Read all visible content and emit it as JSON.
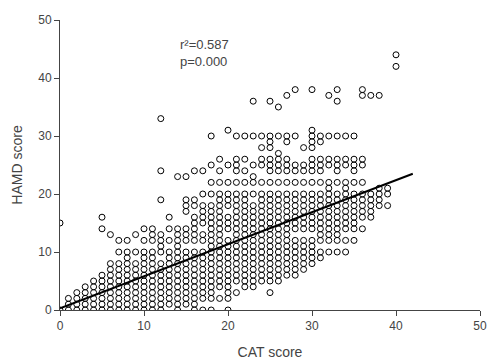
{
  "chart_data": {
    "type": "scatter",
    "xlabel": "CAT score",
    "ylabel": "HAMD score",
    "xlim": [
      0,
      50
    ],
    "ylim": [
      0,
      50
    ],
    "xticks": [
      0,
      10,
      20,
      30,
      40,
      50
    ],
    "yticks": [
      0,
      10,
      20,
      30,
      40,
      50
    ],
    "grid": false,
    "annotation": "r²=0.587\np=0.000",
    "series": [
      {
        "type": "scatter",
        "marker": "open circle",
        "color": "black",
        "x": [
          0,
          0,
          1,
          1,
          1,
          2,
          2,
          2,
          2,
          3,
          3,
          3,
          3,
          3,
          4,
          4,
          4,
          4,
          4,
          4,
          5,
          5,
          5,
          5,
          5,
          5,
          5,
          5,
          5,
          6,
          6,
          6,
          6,
          6,
          6,
          6,
          6,
          6,
          6,
          7,
          7,
          7,
          7,
          7,
          7,
          7,
          7,
          7,
          7,
          7,
          8,
          8,
          8,
          8,
          8,
          8,
          8,
          8,
          8,
          8,
          8,
          8,
          9,
          9,
          9,
          9,
          9,
          9,
          9,
          9,
          9,
          9,
          9,
          10,
          10,
          10,
          10,
          10,
          10,
          10,
          10,
          10,
          10,
          10,
          10,
          10,
          11,
          11,
          11,
          11,
          11,
          11,
          11,
          11,
          11,
          11,
          11,
          11,
          11,
          11,
          12,
          12,
          12,
          12,
          12,
          12,
          12,
          12,
          12,
          12,
          12,
          12,
          12,
          12,
          12,
          12,
          13,
          13,
          13,
          13,
          13,
          13,
          13,
          13,
          13,
          13,
          13,
          13,
          13,
          14,
          14,
          14,
          14,
          14,
          14,
          14,
          14,
          14,
          14,
          14,
          14,
          14,
          14,
          14,
          14,
          15,
          15,
          15,
          15,
          15,
          15,
          15,
          15,
          15,
          15,
          15,
          15,
          15,
          15,
          15,
          15,
          15,
          16,
          16,
          16,
          16,
          16,
          16,
          16,
          16,
          16,
          16,
          16,
          16,
          16,
          16,
          16,
          16,
          16,
          16,
          16,
          17,
          17,
          17,
          17,
          17,
          17,
          17,
          17,
          17,
          17,
          17,
          17,
          17,
          17,
          17,
          17,
          17,
          17,
          18,
          18,
          18,
          18,
          18,
          18,
          18,
          18,
          18,
          18,
          18,
          18,
          18,
          18,
          18,
          18,
          18,
          18,
          18,
          18,
          18,
          18,
          19,
          19,
          19,
          19,
          19,
          19,
          19,
          19,
          19,
          19,
          19,
          19,
          19,
          19,
          19,
          19,
          19,
          19,
          19,
          19,
          19,
          20,
          20,
          20,
          20,
          20,
          20,
          20,
          20,
          20,
          20,
          20,
          20,
          20,
          20,
          20,
          20,
          20,
          20,
          20,
          20,
          20,
          21,
          21,
          21,
          21,
          21,
          21,
          21,
          21,
          21,
          21,
          21,
          21,
          21,
          21,
          21,
          21,
          21,
          21,
          21,
          21,
          21,
          21,
          22,
          22,
          22,
          22,
          22,
          22,
          22,
          22,
          22,
          22,
          22,
          22,
          22,
          22,
          22,
          22,
          22,
          22,
          22,
          22,
          22,
          23,
          23,
          23,
          23,
          23,
          23,
          23,
          23,
          23,
          23,
          23,
          23,
          23,
          23,
          23,
          23,
          23,
          23,
          23,
          23,
          23,
          24,
          24,
          24,
          24,
          24,
          24,
          24,
          24,
          24,
          24,
          24,
          24,
          24,
          24,
          24,
          24,
          24,
          24,
          24,
          24,
          24,
          25,
          25,
          25,
          25,
          25,
          25,
          25,
          25,
          25,
          25,
          25,
          25,
          25,
          25,
          25,
          25,
          25,
          25,
          25,
          25,
          25,
          25,
          25,
          25,
          25,
          26,
          26,
          26,
          26,
          26,
          26,
          26,
          26,
          26,
          26,
          26,
          26,
          26,
          26,
          26,
          26,
          26,
          26,
          26,
          26,
          26,
          26,
          26,
          27,
          27,
          27,
          27,
          27,
          27,
          27,
          27,
          27,
          27,
          27,
          27,
          27,
          27,
          27,
          27,
          27,
          27,
          27,
          27,
          27,
          27,
          28,
          28,
          28,
          28,
          28,
          28,
          28,
          28,
          28,
          28,
          28,
          28,
          28,
          28,
          28,
          28,
          28,
          28,
          28,
          29,
          29,
          29,
          29,
          29,
          29,
          29,
          29,
          29,
          29,
          29,
          29,
          29,
          29,
          29,
          29,
          29,
          30,
          30,
          30,
          30,
          30,
          30,
          30,
          30,
          30,
          30,
          30,
          30,
          30,
          30,
          30,
          30,
          30,
          30,
          30,
          30,
          30,
          31,
          31,
          31,
          31,
          31,
          31,
          31,
          31,
          31,
          31,
          31,
          31,
          31,
          31,
          31,
          31,
          31,
          32,
          32,
          32,
          32,
          32,
          32,
          32,
          32,
          32,
          32,
          32,
          32,
          32,
          32,
          32,
          32,
          33,
          33,
          33,
          33,
          33,
          33,
          33,
          33,
          33,
          33,
          33,
          33,
          33,
          33,
          33,
          33,
          33,
          34,
          34,
          34,
          34,
          34,
          34,
          34,
          34,
          34,
          34,
          34,
          34,
          34,
          34,
          35,
          35,
          35,
          35,
          35,
          35,
          35,
          35,
          35,
          35,
          35,
          35,
          35,
          36,
          36,
          36,
          36,
          36,
          36,
          36,
          36,
          36,
          36,
          36,
          37,
          37,
          37,
          37,
          37,
          37,
          38,
          38,
          38,
          38,
          38,
          39,
          39,
          39,
          40,
          40
        ],
        "values": [
          15,
          0,
          0,
          1,
          2,
          0,
          1,
          2,
          3,
          0,
          1,
          2,
          3,
          4,
          0,
          1,
          2,
          3,
          4,
          5,
          0,
          1,
          2,
          3,
          4,
          5,
          6,
          14,
          16,
          0,
          1,
          2,
          3,
          4,
          5,
          6,
          7,
          8,
          13,
          0,
          1,
          2,
          3,
          4,
          5,
          6,
          7,
          8,
          10,
          12,
          0,
          1,
          2,
          3,
          4,
          5,
          6,
          7,
          8,
          9,
          10,
          12,
          0,
          1,
          2,
          3,
          4,
          5,
          6,
          7,
          8,
          10,
          13,
          0,
          1,
          2,
          3,
          4,
          5,
          6,
          7,
          8,
          9,
          10,
          12,
          14,
          0,
          1,
          2,
          3,
          4,
          5,
          6,
          7,
          8,
          9,
          10,
          12,
          13,
          14,
          0,
          1,
          2,
          3,
          4,
          5,
          6,
          7,
          8,
          10,
          11,
          12,
          13,
          19,
          24,
          33,
          1,
          2,
          3,
          4,
          5,
          6,
          7,
          8,
          9,
          10,
          12,
          14,
          16,
          0,
          1,
          2,
          3,
          4,
          5,
          6,
          7,
          8,
          9,
          10,
          11,
          12,
          13,
          14,
          23,
          1,
          2,
          3,
          4,
          5,
          6,
          7,
          8,
          9,
          10,
          12,
          13,
          14,
          17,
          18,
          19,
          23,
          0,
          1,
          2,
          3,
          4,
          5,
          6,
          7,
          8,
          9,
          10,
          12,
          13,
          14,
          15,
          16,
          18,
          19,
          24,
          0,
          2,
          3,
          4,
          5,
          6,
          7,
          8,
          9,
          10,
          12,
          13,
          15,
          16,
          17,
          18,
          20,
          24,
          0,
          2,
          3,
          4,
          5,
          6,
          7,
          8,
          9,
          10,
          11,
          12,
          13,
          14,
          15,
          16,
          17,
          18,
          20,
          22,
          25,
          30,
          2,
          4,
          5,
          6,
          7,
          8,
          9,
          10,
          11,
          12,
          13,
          14,
          15,
          16,
          17,
          18,
          19,
          20,
          22,
          24,
          26,
          0,
          2,
          3,
          4,
          5,
          6,
          7,
          8,
          9,
          10,
          11,
          12,
          14,
          15,
          16,
          18,
          19,
          20,
          22,
          25,
          31,
          3,
          5,
          6,
          7,
          8,
          9,
          10,
          11,
          12,
          13,
          14,
          15,
          16,
          17,
          18,
          19,
          20,
          22,
          24,
          25,
          26,
          30,
          4,
          5,
          6,
          7,
          8,
          9,
          10,
          11,
          12,
          13,
          14,
          15,
          16,
          17,
          18,
          19,
          20,
          22,
          24,
          26,
          30,
          4,
          5,
          6,
          7,
          8,
          9,
          10,
          11,
          12,
          13,
          14,
          15,
          16,
          17,
          18,
          20,
          22,
          23,
          25,
          30,
          36,
          5,
          6,
          7,
          8,
          9,
          10,
          11,
          12,
          13,
          14,
          15,
          16,
          17,
          18,
          19,
          20,
          22,
          25,
          26,
          28,
          30,
          3,
          5,
          6,
          7,
          8,
          9,
          10,
          11,
          12,
          13,
          14,
          15,
          16,
          17,
          18,
          19,
          20,
          22,
          24,
          25,
          26,
          28,
          29,
          30,
          36,
          5,
          6,
          7,
          8,
          9,
          10,
          11,
          12,
          13,
          14,
          15,
          16,
          17,
          18,
          19,
          20,
          22,
          24,
          25,
          26,
          27,
          30,
          35,
          6,
          7,
          8,
          9,
          10,
          11,
          12,
          13,
          14,
          15,
          16,
          17,
          18,
          19,
          20,
          22,
          24,
          25,
          26,
          29,
          30,
          37,
          6,
          7,
          8,
          9,
          10,
          11,
          12,
          14,
          15,
          16,
          17,
          18,
          19,
          20,
          22,
          24,
          25,
          30,
          38,
          7,
          8,
          9,
          10,
          11,
          12,
          14,
          15,
          16,
          17,
          18,
          19,
          20,
          22,
          24,
          25,
          28,
          8,
          9,
          10,
          11,
          12,
          14,
          15,
          16,
          17,
          18,
          19,
          20,
          22,
          24,
          25,
          26,
          28,
          29,
          30,
          31,
          38,
          9,
          10,
          12,
          13,
          14,
          15,
          16,
          17,
          18,
          19,
          20,
          22,
          24,
          25,
          26,
          29,
          30,
          10,
          12,
          13,
          14,
          15,
          16,
          17,
          18,
          19,
          20,
          21,
          22,
          25,
          26,
          30,
          37,
          10,
          12,
          13,
          14,
          15,
          16,
          17,
          18,
          19,
          20,
          22,
          24,
          25,
          26,
          30,
          36,
          38,
          10,
          12,
          14,
          15,
          16,
          17,
          18,
          19,
          20,
          21,
          22,
          25,
          26,
          30,
          12,
          14,
          15,
          16,
          17,
          18,
          19,
          20,
          22,
          24,
          25,
          26,
          30,
          14,
          16,
          17,
          18,
          19,
          20,
          22,
          25,
          26,
          37,
          38,
          16,
          17,
          18,
          19,
          20,
          37,
          18,
          19,
          20,
          21,
          37,
          18,
          20,
          21,
          42,
          44
        ]
      },
      {
        "type": "line",
        "color": "black",
        "x": [
          0.0,
          42.0
        ],
        "values": [
          0.3,
          23.5
        ]
      }
    ]
  }
}
